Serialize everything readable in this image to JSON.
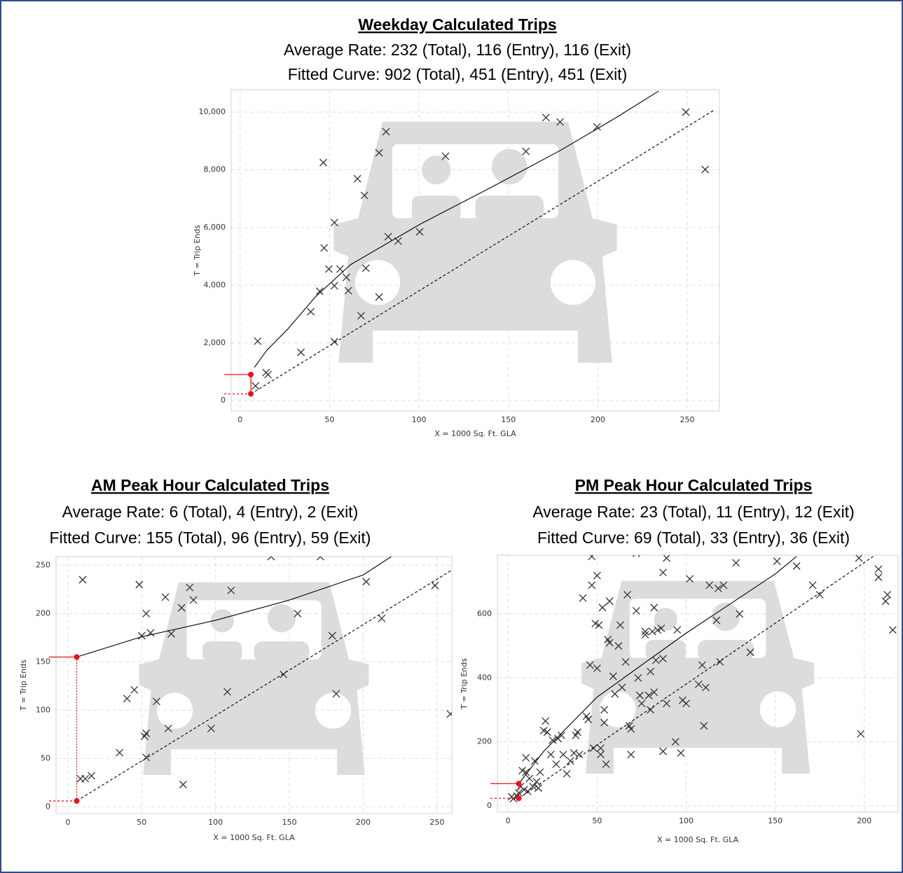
{
  "chart_data": [
    {
      "type": "scatter",
      "title": "Weekday Calculated Trips",
      "subtitle": [
        "Average Rate: 232 (Total), 116 (Entry), 116 (Exit)",
        "Fitted Curve: 902 (Total), 451 (Entry), 451 (Exit)"
      ],
      "xlabel": "X = 1000 Sq. Ft. GLA",
      "ylabel": "T = Trip Ends",
      "xlim": [
        -5,
        268
      ],
      "ylim": [
        -360,
        10780
      ],
      "xticks": [
        0,
        50,
        100,
        150,
        200,
        250
      ],
      "yticks": [
        0,
        {
          "value": 2000,
          "label": "2,000"
        },
        {
          "value": 4000,
          "label": "4,000"
        },
        {
          "value": 6000,
          "label": "6,000"
        },
        {
          "value": 8000,
          "label": "8,000"
        },
        {
          "value": 10000,
          "label": "10,000"
        }
      ],
      "grid": true,
      "series": [
        {
          "type": "scatter",
          "marker": "x",
          "color": "#333333",
          "x": [
            8.6,
            9.8,
            14.5,
            15.6,
            34,
            39.5,
            44.5,
            46.5,
            47,
            49.6,
            52.7,
            52.7,
            52.7,
            55.9,
            59.4,
            60.5,
            65.6,
            67.6,
            69.5,
            70.3,
            77.7,
            77.7,
            81.6,
            82.8,
            88.3,
            100.4,
            114.8,
            159.8,
            171,
            178.9,
            199.6,
            249.2,
            260
          ],
          "values": [
            510,
            2060,
            970,
            900,
            1670,
            3080,
            3790,
            8250,
            5290,
            4560,
            6170,
            3980,
            2040,
            4560,
            4270,
            3810,
            7690,
            2940,
            7110,
            4590,
            8590,
            3590,
            9320,
            5680,
            5530,
            5850,
            8470,
            8640,
            9810,
            9660,
            9490,
            10000,
            8010
          ]
        },
        {
          "type": "line",
          "color": "#000000",
          "x": [
            8,
            15,
            26.6,
            42,
            61.7,
            100.8,
            140,
            179,
            210,
            234
          ],
          "values": [
            1150,
            1750,
            2475,
            3590,
            4710,
            6120,
            7380,
            8670,
            9800,
            10730
          ]
        },
        {
          "type": "line",
          "dash": true,
          "color": "#000000",
          "x": [
            6,
            265
          ],
          "values": [
            232,
            10070
          ]
        },
        {
          "type": "guide",
          "color": "#e8141b",
          "x": [
            6,
            6
          ],
          "values": [
            902,
            232
          ]
        }
      ]
    },
    {
      "type": "scatter",
      "title": "AM Peak Hour Calculated Trips",
      "subtitle": [
        "Average Rate: 6 (Total), 4 (Entry), 2 (Exit)",
        "Fitted Curve: 155 (Total), 96 (Entry), 59 (Exit)"
      ],
      "xlabel": "X = 1000 Sq. Ft. GLA",
      "ylabel": "T = Trip Ends",
      "xlim": [
        -8,
        260
      ],
      "ylim": [
        -7,
        259
      ],
      "xticks": [
        0,
        50,
        100,
        150,
        200,
        250
      ],
      "yticks": [
        0,
        50,
        100,
        150,
        200,
        250
      ],
      "grid": true,
      "series": [
        {
          "type": "scatter",
          "marker": "x",
          "color": "#333333",
          "x": [
            10,
            8.5,
            11.8,
            16,
            35,
            40,
            45,
            48.4,
            50,
            53,
            52,
            53,
            53,
            56,
            60,
            66,
            68,
            70,
            77,
            78,
            82.5,
            85,
            97,
            108,
            110.5,
            137.6,
            146,
            155.6,
            171,
            179,
            181.7,
            202,
            212.5,
            248.6,
            259
          ],
          "values": [
            235,
            29,
            29,
            32,
            56,
            112,
            121,
            230,
            177,
            200,
            73,
            76,
            51,
            180,
            109,
            217,
            81,
            179,
            206,
            23,
            227,
            214,
            81,
            119,
            224,
            259,
            137,
            200,
            259,
            177,
            117,
            233,
            195,
            229,
            96
          ]
        },
        {
          "type": "line",
          "color": "#000000",
          "x": [
            6,
            50,
            100,
            150,
            200,
            219
          ],
          "values": [
            155,
            176,
            193,
            214,
            240,
            259
          ]
        },
        {
          "type": "line",
          "dash": true,
          "color": "#000000",
          "x": [
            6,
            260
          ],
          "values": [
            6,
            245
          ]
        },
        {
          "type": "guide",
          "color": "#e8141b",
          "x": [
            6,
            6
          ],
          "values": [
            155,
            6
          ]
        }
      ]
    },
    {
      "type": "scatter",
      "title": "PM Peak Hour Calculated Trips",
      "subtitle": [
        "Average Rate: 23 (Total), 11 (Entry), 12 (Exit)",
        "Fitted Curve: 69 (Total), 33 (Entry), 36 (Exit)"
      ],
      "xlabel": "X = 1000 Sq. Ft. GLA",
      "ylabel": "T = Trip Ends",
      "xlim": [
        -6,
        219
      ],
      "ylim": [
        -20,
        784
      ],
      "xticks": [
        0,
        50,
        100,
        150,
        200
      ],
      "yticks": [
        0,
        200,
        400,
        600
      ],
      "grid": true,
      "series": [
        {
          "type": "scatter",
          "marker": "x",
          "color": "#333333",
          "x": [
            2,
            3,
            5,
            6,
            7,
            8,
            9,
            10,
            10,
            11,
            12,
            14,
            15,
            16,
            17,
            18,
            20,
            21,
            22,
            24,
            25,
            27,
            28,
            30,
            31,
            33,
            35,
            37,
            38,
            39,
            40,
            42,
            44,
            45,
            46,
            47,
            47,
            48,
            49,
            50,
            50,
            51,
            52,
            52,
            53,
            54,
            54,
            55,
            56,
            57,
            57,
            59,
            60,
            62,
            63,
            64,
            66,
            67,
            68,
            69,
            69,
            72,
            72,
            73,
            74,
            75,
            77,
            77,
            79,
            80,
            80,
            81,
            82,
            82,
            83,
            84,
            86,
            87,
            87,
            87,
            89,
            89,
            94,
            95,
            97,
            98,
            100,
            102,
            107,
            109,
            110,
            111,
            113,
            117,
            118,
            119,
            121,
            128,
            130,
            136,
            151,
            162,
            171,
            175,
            197,
            198,
            208,
            208,
            212,
            213,
            216
          ],
          "values": [
            28,
            22,
            30,
            40,
            60,
            110,
            50,
            150,
            105,
            45,
            85,
            60,
            140,
            75,
            55,
            105,
            235,
            265,
            230,
            160,
            205,
            130,
            210,
            220,
            160,
            100,
            140,
            165,
            220,
            230,
            160,
            650,
            280,
            270,
            440,
            690,
            780,
            180,
            570,
            720,
            430,
            565,
            180,
            160,
            620,
            300,
            260,
            130,
            520,
            640,
            510,
            405,
            350,
            500,
            565,
            370,
            450,
            660,
            250,
            160,
            240,
            610,
            790,
            400,
            345,
            320,
            535,
            545,
            345,
            300,
            420,
            545,
            620,
            355,
            455,
            550,
            555,
            170,
            730,
            460,
            320,
            775,
            200,
            550,
            165,
            330,
            320,
            710,
            380,
            440,
            250,
            370,
            690,
            580,
            680,
            450,
            690,
            760,
            600,
            480,
            765,
            750,
            690,
            660,
            775,
            225,
            740,
            715,
            640,
            660,
            550
          ]
        },
        {
          "type": "line",
          "color": "#000000",
          "x": [
            6,
            20,
            50,
            100,
            150,
            162
          ],
          "values": [
            69,
            170,
            340,
            540,
            725,
            780
          ]
        },
        {
          "type": "line",
          "dash": true,
          "color": "#000000",
          "x": [
            6,
            205
          ],
          "values": [
            23,
            780
          ]
        },
        {
          "type": "guide",
          "color": "#e8141b",
          "x": [
            6,
            6
          ],
          "values": [
            69,
            23
          ]
        }
      ]
    }
  ]
}
